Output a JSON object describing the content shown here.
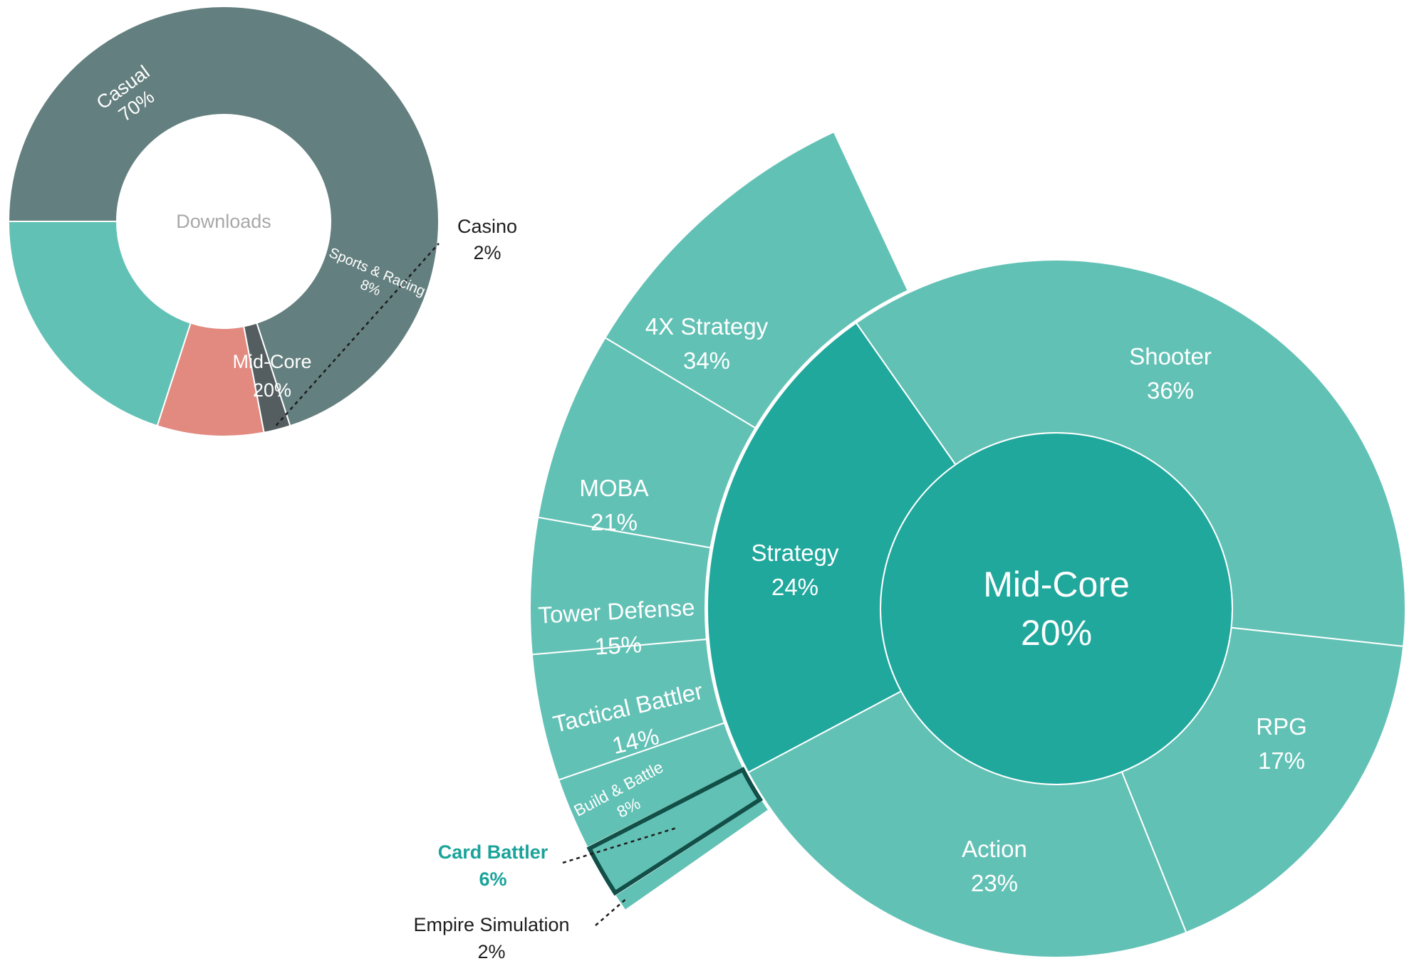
{
  "chart_data": [
    {
      "type": "pie",
      "variant": "donut",
      "center_label": "Downloads",
      "slices": [
        {
          "label": "Casual",
          "value": 70,
          "value_label": "70%",
          "color": "#647f7f"
        },
        {
          "label": "Casino",
          "value": 2,
          "value_label": "2%",
          "color": "#545e60"
        },
        {
          "label": "Sports & Racing",
          "value": 8,
          "value_label": "8%",
          "color": "#e28a80"
        },
        {
          "label": "Mid-Core",
          "value": 20,
          "value_label": "20%",
          "color": "#62c1b5"
        }
      ]
    },
    {
      "type": "pie",
      "variant": "sunburst",
      "center": {
        "label": "Mid-Core",
        "value": 20,
        "value_label": "20%",
        "color": "#21a89d"
      },
      "inner_ring": [
        {
          "label": "Shooter",
          "value": 36,
          "value_label": "36%"
        },
        {
          "label": "RPG",
          "value": 17,
          "value_label": "17%"
        },
        {
          "label": "Action",
          "value": 23,
          "value_label": "23%"
        },
        {
          "label": "Strategy",
          "value": 24,
          "value_label": "24%",
          "expanded": true
        }
      ],
      "strategy_breakdown": [
        {
          "label": "Empire Simulation",
          "value": 2,
          "value_label": "2%"
        },
        {
          "label": "Card Battler",
          "value": 6,
          "value_label": "6%",
          "highlighted": true
        },
        {
          "label": "Build & Battle",
          "value": 8,
          "value_label": "8%"
        },
        {
          "label": "Tactical Battler",
          "value": 14,
          "value_label": "14%"
        },
        {
          "label": "Tower Defense",
          "value": 15,
          "value_label": "15%"
        },
        {
          "label": "MOBA",
          "value": 21,
          "value_label": "21%"
        },
        {
          "label": "4X Strategy",
          "value": 34,
          "value_label": "34%"
        }
      ],
      "colors": {
        "ring": "#62c1b5",
        "expanded": "#21a89d",
        "highlight_outline": "#114f48",
        "highlight_text": "#1aa39a"
      }
    }
  ]
}
